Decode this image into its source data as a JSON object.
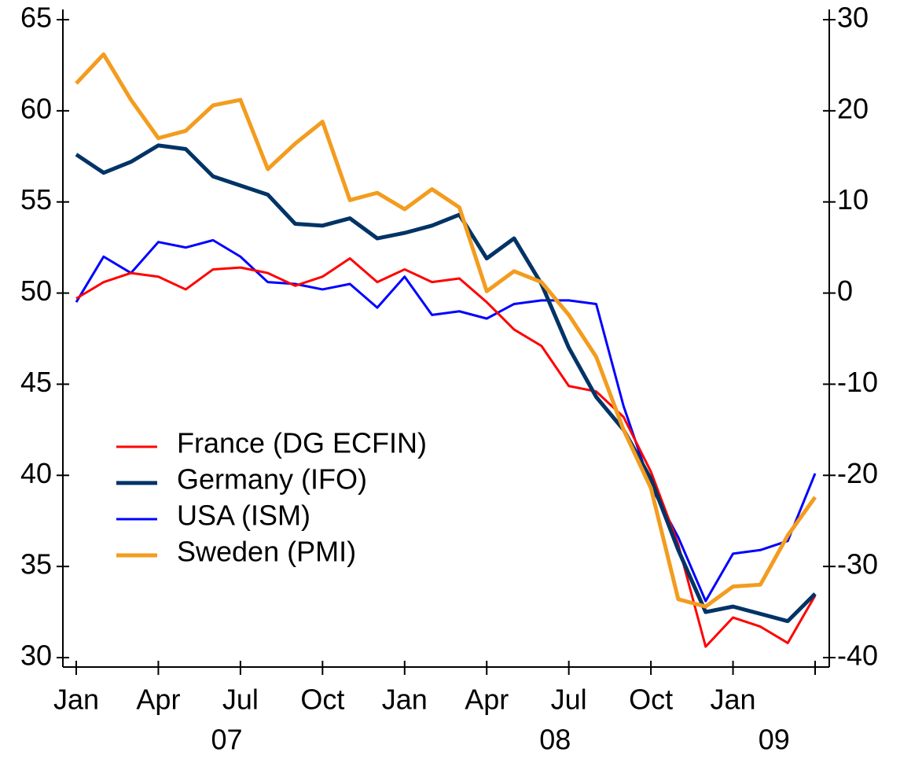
{
  "chart_data": {
    "type": "line",
    "categories": [
      "2007-01",
      "2007-02",
      "2007-03",
      "2007-04",
      "2007-05",
      "2007-06",
      "2007-07",
      "2007-08",
      "2007-09",
      "2007-10",
      "2007-11",
      "2007-12",
      "2008-01",
      "2008-02",
      "2008-03",
      "2008-04",
      "2008-05",
      "2008-06",
      "2008-07",
      "2008-08",
      "2008-09",
      "2008-10",
      "2008-11",
      "2008-12",
      "2009-01",
      "2009-02",
      "2009-03",
      "2009-04"
    ],
    "series": [
      {
        "name": "France (DG ECFIN)",
        "color": "#ff0000",
        "width": 3,
        "values": [
          49.7,
          50.6,
          51.1,
          50.9,
          50.2,
          51.3,
          51.4,
          51.1,
          50.4,
          50.9,
          51.9,
          50.6,
          51.3,
          50.6,
          50.8,
          49.5,
          48.0,
          47.1,
          44.9,
          44.6,
          43.2,
          40.2,
          36.2,
          30.6,
          32.2,
          31.7,
          30.8,
          33.4
        ]
      },
      {
        "name": "Germany (IFO)",
        "color": "#003366",
        "width": 5,
        "values": [
          57.6,
          56.6,
          57.2,
          58.1,
          57.9,
          56.4,
          55.9,
          55.4,
          53.8,
          53.7,
          54.1,
          53.0,
          53.3,
          53.7,
          54.3,
          51.9,
          53.0,
          50.5,
          47.0,
          44.3,
          42.5,
          39.8,
          35.9,
          32.5,
          32.8,
          32.4,
          32.0,
          33.5
        ]
      },
      {
        "name": "USA (ISM)",
        "color": "#0000ff",
        "width": 3,
        "values": [
          49.5,
          52.0,
          51.1,
          52.8,
          52.5,
          52.9,
          52.0,
          50.6,
          50.5,
          50.2,
          50.5,
          49.2,
          50.9,
          48.8,
          49.0,
          48.6,
          49.4,
          49.6,
          49.6,
          49.4,
          43.8,
          39.4,
          36.6,
          33.1,
          35.7,
          35.9,
          36.4,
          40.1
        ]
      },
      {
        "name": "Sweden (PMI)",
        "color": "#f39c1e",
        "width": 5,
        "values": [
          61.5,
          63.1,
          60.6,
          58.5,
          58.9,
          60.3,
          60.6,
          56.8,
          58.2,
          59.4,
          55.1,
          55.5,
          54.6,
          55.7,
          54.7,
          50.1,
          51.2,
          50.6,
          48.8,
          46.5,
          42.5,
          39.3,
          33.2,
          32.8,
          33.9,
          34.0,
          36.7,
          38.8
        ]
      }
    ],
    "ylim": [
      30,
      65
    ],
    "yticks": [
      30,
      35,
      40,
      45,
      50,
      55,
      60,
      65
    ],
    "y2lim": [
      -40,
      30
    ],
    "y2ticks": [
      -40,
      -30,
      -20,
      -10,
      0,
      10,
      20,
      30
    ],
    "xticks": [
      {
        "value": "2007-01",
        "label": "Jan"
      },
      {
        "value": "2007-04",
        "label": "Apr"
      },
      {
        "value": "2007-07",
        "label": "Jul"
      },
      {
        "value": "2007-10",
        "label": "Oct"
      },
      {
        "value": "2008-01",
        "label": "Jan"
      },
      {
        "value": "2008-04",
        "label": "Apr"
      },
      {
        "value": "2008-07",
        "label": "Jul"
      },
      {
        "value": "2008-10",
        "label": "Oct"
      },
      {
        "value": "2009-01",
        "label": "Jan"
      },
      {
        "value": "2009-04",
        "label": ""
      }
    ],
    "year_labels": [
      {
        "value": "2007",
        "label": "07"
      },
      {
        "value": "2008",
        "label": "08"
      },
      {
        "value": "2009",
        "label": "09"
      }
    ],
    "legend": "lower-left",
    "grid": false
  }
}
